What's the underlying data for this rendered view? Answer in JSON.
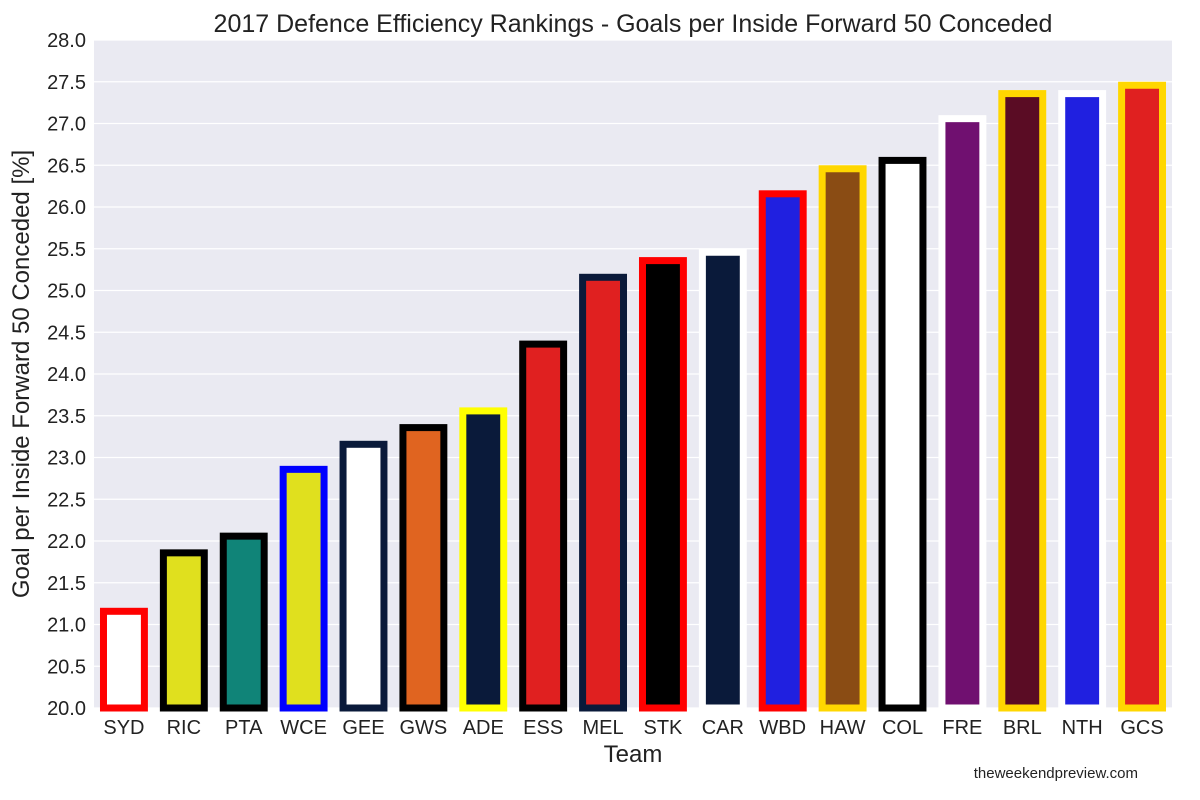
{
  "chart_data": {
    "type": "bar",
    "title": "2017 Defence Efficiency Rankings - Goals per Inside Forward 50 Conceded",
    "xlabel": "Team",
    "ylabel": "Goal per Inside Forward 50 Conceded [%]",
    "ylim": [
      20.0,
      28.0
    ],
    "yticks": [
      "20.0",
      "20.5",
      "21.0",
      "21.5",
      "22.0",
      "22.5",
      "23.0",
      "23.5",
      "24.0",
      "24.5",
      "25.0",
      "25.5",
      "26.0",
      "26.5",
      "27.0",
      "27.5",
      "28.0"
    ],
    "grid": true,
    "categories": [
      "SYD",
      "RIC",
      "PTA",
      "WCE",
      "GEE",
      "GWS",
      "ADE",
      "ESS",
      "MEL",
      "STK",
      "CAR",
      "WBD",
      "HAW",
      "COL",
      "FRE",
      "BRL",
      "NTH",
      "GCS"
    ],
    "values": [
      21.2,
      21.9,
      22.1,
      22.9,
      23.2,
      23.4,
      23.6,
      24.4,
      25.2,
      25.4,
      25.5,
      26.2,
      26.5,
      26.6,
      27.1,
      27.4,
      27.4,
      27.5
    ],
    "fill_colors": [
      "#ffffff",
      "#e0e01e",
      "#108478",
      "#e0e01e",
      "#ffffff",
      "#e06420",
      "#0a1a3a",
      "#e02020",
      "#e02020",
      "#000000",
      "#0a1a3a",
      "#2020e0",
      "#8a4c14",
      "#ffffff",
      "#701070",
      "#5a0c24",
      "#2020e0",
      "#e02020"
    ],
    "edge_colors": [
      "#ff0000",
      "#000000",
      "#000000",
      "#0000ff",
      "#0a1a3a",
      "#000000",
      "#ffff00",
      "#000000",
      "#0a1a3a",
      "#ff0000",
      "#ffffff",
      "#ff0000",
      "#ffd700",
      "#000000",
      "#ffffff",
      "#ffd700",
      "#ffffff",
      "#ffd700"
    ]
  },
  "plot_background": "#eaeaf2",
  "credit": "theweekendpreview.com"
}
